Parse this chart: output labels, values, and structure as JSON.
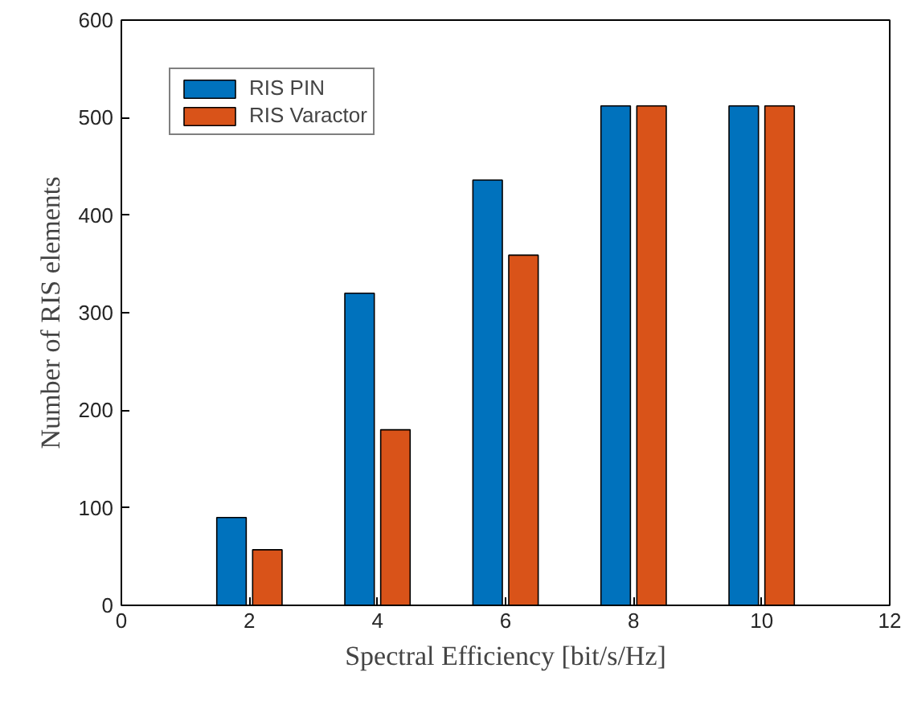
{
  "chart_data": {
    "type": "bar",
    "xlabel": "Spectral Efficiency [bit/s/Hz]",
    "ylabel": "Number of RIS elements",
    "x": [
      2,
      4,
      6,
      8,
      10
    ],
    "series": [
      {
        "name": "RIS PIN",
        "color": "#0072bd",
        "values": [
          90,
          320,
          436,
          512,
          512
        ]
      },
      {
        "name": "RIS Varactor",
        "color": "#d95319",
        "values": [
          57,
          180,
          359,
          512,
          512
        ]
      }
    ],
    "xlim": [
      0,
      12
    ],
    "xticks": [
      0,
      2,
      4,
      6,
      8,
      10,
      12
    ],
    "ylim": [
      0,
      600
    ],
    "yticks": [
      0,
      100,
      200,
      300,
      400,
      500,
      600
    ],
    "grid": false,
    "legend": "top left"
  }
}
